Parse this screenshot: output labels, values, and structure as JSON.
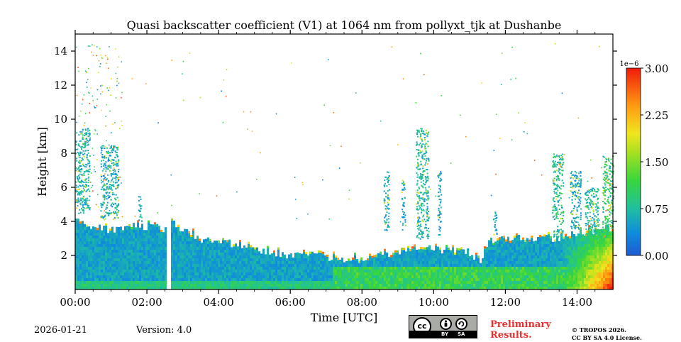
{
  "chart_data": {
    "type": "heatmap",
    "title": "Quasi backscatter coefficient (V1) at 1064 nm from pollyxt_tjk at Dushanbe",
    "xlabel": "Time [UTC]",
    "ylabel": "Height [km]",
    "x_range_hours": [
      0,
      15
    ],
    "y_range_km": [
      0,
      15
    ],
    "x_ticks": [
      {
        "value": 0,
        "label": "00:00"
      },
      {
        "value": 2,
        "label": "02:00"
      },
      {
        "value": 4,
        "label": "04:00"
      },
      {
        "value": 6,
        "label": "06:00"
      },
      {
        "value": 8,
        "label": "08:00"
      },
      {
        "value": 10,
        "label": "10:00"
      },
      {
        "value": 12,
        "label": "12:00"
      },
      {
        "value": 14,
        "label": "14:00"
      }
    ],
    "y_ticks": [
      {
        "value": 2,
        "label": "2"
      },
      {
        "value": 4,
        "label": "4"
      },
      {
        "value": 6,
        "label": "6"
      },
      {
        "value": 8,
        "label": "8"
      },
      {
        "value": 10,
        "label": "10"
      },
      {
        "value": 12,
        "label": "12"
      },
      {
        "value": 14,
        "label": "14"
      }
    ],
    "colorbar": {
      "exponent_label": "1e−6",
      "range": [
        0,
        3.0
      ],
      "ticks": [
        {
          "value": 0.0,
          "label": "0.00"
        },
        {
          "value": 0.75,
          "label": "0.75"
        },
        {
          "value": 1.5,
          "label": "1.50"
        },
        {
          "value": 2.25,
          "label": "2.25"
        },
        {
          "value": 3.0,
          "label": "3.00"
        }
      ]
    },
    "data_gap_hours": [
      2.55,
      2.68
    ],
    "boundary_layer_top_km": [
      {
        "t": 0.0,
        "h": 4.2
      },
      {
        "t": 0.5,
        "h": 3.7
      },
      {
        "t": 1.0,
        "h": 3.5
      },
      {
        "t": 1.5,
        "h": 3.8
      },
      {
        "t": 2.0,
        "h": 3.7
      },
      {
        "t": 2.5,
        "h": 3.6
      },
      {
        "t": 2.7,
        "h": 3.9
      },
      {
        "t": 3.0,
        "h": 3.5
      },
      {
        "t": 3.5,
        "h": 3.0
      },
      {
        "t": 4.0,
        "h": 2.8
      },
      {
        "t": 4.5,
        "h": 2.7
      },
      {
        "t": 5.0,
        "h": 2.4
      },
      {
        "t": 5.5,
        "h": 2.2
      },
      {
        "t": 6.0,
        "h": 2.0
      },
      {
        "t": 6.5,
        "h": 2.1
      },
      {
        "t": 7.0,
        "h": 1.9
      },
      {
        "t": 7.5,
        "h": 1.8
      },
      {
        "t": 8.0,
        "h": 1.8
      },
      {
        "t": 8.5,
        "h": 2.0
      },
      {
        "t": 9.0,
        "h": 2.1
      },
      {
        "t": 9.5,
        "h": 2.3
      },
      {
        "t": 10.0,
        "h": 2.4
      },
      {
        "t": 10.5,
        "h": 2.3
      },
      {
        "t": 11.0,
        "h": 2.2
      },
      {
        "t": 11.3,
        "h": 1.6
      },
      {
        "t": 11.5,
        "h": 2.8
      },
      {
        "t": 12.0,
        "h": 2.9
      },
      {
        "t": 12.5,
        "h": 3.0
      },
      {
        "t": 13.0,
        "h": 3.1
      },
      {
        "t": 13.5,
        "h": 3.0
      },
      {
        "t": 14.0,
        "h": 3.3
      },
      {
        "t": 14.5,
        "h": 3.5
      },
      {
        "t": 15.0,
        "h": 3.6
      }
    ],
    "aerosol_layers": [
      {
        "t0": 0.0,
        "t1": 0.4,
        "h0": 4.5,
        "h1": 9.5,
        "level": 0.7
      },
      {
        "t0": 0.7,
        "t1": 1.2,
        "h0": 4.2,
        "h1": 8.5,
        "level": 0.6
      },
      {
        "t0": 1.75,
        "t1": 1.85,
        "h0": 4.0,
        "h1": 5.5,
        "level": 0.6
      },
      {
        "t0": 8.6,
        "t1": 8.75,
        "h0": 3.5,
        "h1": 7.0,
        "level": 0.6
      },
      {
        "t0": 9.1,
        "t1": 9.2,
        "h0": 3.5,
        "h1": 6.5,
        "level": 0.5
      },
      {
        "t0": 9.5,
        "t1": 9.85,
        "h0": 3.0,
        "h1": 9.5,
        "level": 0.75
      },
      {
        "t0": 10.1,
        "t1": 10.2,
        "h0": 3.2,
        "h1": 7.0,
        "level": 0.5
      },
      {
        "t0": 11.65,
        "t1": 11.75,
        "h0": 3.2,
        "h1": 4.8,
        "level": 0.6
      },
      {
        "t0": 13.3,
        "t1": 13.6,
        "h0": 3.0,
        "h1": 8.0,
        "level": 0.85
      },
      {
        "t0": 13.8,
        "t1": 14.1,
        "h0": 3.5,
        "h1": 7.0,
        "level": 0.6
      },
      {
        "t0": 14.2,
        "t1": 14.6,
        "h0": 3.0,
        "h1": 6.0,
        "level": 0.8
      },
      {
        "t0": 14.7,
        "t1": 15.0,
        "h0": 3.0,
        "h1": 8.0,
        "level": 1.0
      }
    ],
    "dust_enhancement": {
      "t0": 13.2,
      "t1": 15.0,
      "h_top": 3.5,
      "peak_level": 2.8
    }
  },
  "footer": {
    "date": "2026-01-21",
    "version": "Version: 4.0",
    "preliminary_line1": "Preliminary",
    "preliminary_line2": "Results.",
    "preliminary_color": "#e8312f",
    "copyright_line1": "© TROPOS 2026.",
    "copyright_line2": "CC BY SA 4.0 License.",
    "license_badge": {
      "cc": "cc",
      "by": "BY",
      "sa": "SA"
    }
  }
}
